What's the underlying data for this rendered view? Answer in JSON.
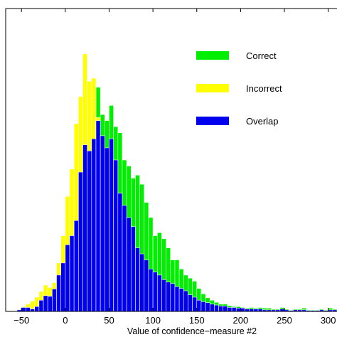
{
  "chart_data": {
    "type": "bar",
    "xlabel": "Value of confidence−measure #2",
    "ylabel": "",
    "title": "",
    "x_ticks": [
      -50,
      0,
      50,
      100,
      150,
      200,
      250,
      300
    ],
    "x_tick_labels": [
      "−50",
      "0",
      "50",
      "100",
      "150",
      "200",
      "250",
      "300"
    ],
    "xlim": [
      -68,
      310
    ],
    "ylim": [
      0,
      100
    ],
    "bin_width": 5,
    "bin_starts": [
      -60,
      -55,
      -50,
      -45,
      -40,
      -35,
      -30,
      -25,
      -20,
      -15,
      -10,
      -5,
      0,
      5,
      10,
      15,
      20,
      25,
      30,
      35,
      40,
      45,
      50,
      55,
      60,
      65,
      70,
      75,
      80,
      85,
      90,
      95,
      100,
      105,
      110,
      115,
      120,
      125,
      130,
      135,
      140,
      145,
      150,
      155,
      160,
      165,
      170,
      175,
      180,
      185,
      190,
      195,
      200,
      205,
      210,
      215,
      220,
      225,
      230,
      235,
      240,
      245,
      250,
      255,
      260,
      265,
      270,
      275,
      280,
      285,
      290,
      295,
      300,
      305
    ],
    "series": [
      {
        "name": "Correct",
        "color": "#00ee00",
        "values": [
          0,
          0.5,
          1.3,
          1.3,
          0.8,
          1.6,
          5.2,
          5.5,
          5.5,
          7.4,
          12,
          18,
          30,
          39,
          42,
          43,
          55,
          59,
          66,
          74,
          65,
          63,
          68,
          61,
          59,
          50,
          48,
          44,
          45,
          42,
          36,
          31,
          25,
          26,
          24,
          21,
          17,
          17,
          14,
          12,
          11,
          10,
          7.6,
          5.8,
          4.5,
          3.7,
          3,
          2.4,
          2.4,
          1.9,
          1.6,
          1.6,
          1.3,
          1.1,
          1.3,
          1.1,
          1.3,
          1.1,
          1.1,
          0.8,
          0.8,
          1.3,
          0.8,
          0.5,
          0.8,
          0.8,
          1.1,
          0.5,
          0.5,
          0.5,
          0.8,
          0.5,
          1.1,
          0.8
        ]
      },
      {
        "name": "Incorrect",
        "color": "#ffff00",
        "values": [
          0,
          0.5,
          1.6,
          2.4,
          3.4,
          4.7,
          6.6,
          8.7,
          7.9,
          9.5,
          16,
          25,
          38,
          47,
          62,
          71,
          85,
          76,
          77,
          64,
          57,
          47,
          32,
          22,
          16,
          9.2,
          6,
          4.2,
          3.4,
          2.9,
          2.1,
          1.8,
          1.6,
          1.3,
          1.1,
          0.8,
          0.8,
          0.5,
          0.5,
          0.5,
          0.3,
          0.3,
          0.3,
          0.3,
          0.3,
          0.3,
          0.3,
          0,
          0,
          0,
          0,
          0,
          0,
          0,
          0,
          0,
          0,
          0,
          0,
          0,
          0,
          0,
          0,
          0,
          0,
          0,
          0,
          0,
          0,
          0,
          0,
          0,
          0,
          0
        ]
      },
      {
        "name": "Overlap",
        "color": "#0000ee",
        "values": [
          0,
          0.5,
          1.3,
          1.3,
          0.8,
          1.6,
          3.7,
          5.2,
          5,
          7.4,
          12,
          16,
          22,
          25,
          30,
          46,
          55,
          53,
          57,
          63,
          58,
          54,
          57,
          50,
          39,
          35,
          31,
          28,
          21,
          19,
          17,
          14,
          13,
          12,
          10.5,
          9.7,
          9.2,
          8.2,
          7.6,
          6.8,
          5.5,
          4.7,
          3.7,
          3.2,
          2.9,
          2.4,
          2.1,
          1.8,
          1.8,
          1.3,
          1.3,
          1.1,
          1.1,
          0.8,
          0.8,
          0.8,
          0.8,
          0.5,
          0.5,
          0.5,
          0.5,
          0.8,
          0.5,
          0.3,
          0.5,
          0.5,
          0.5,
          0.3,
          0.3,
          0.3,
          0.5,
          0.3,
          0.5,
          0.5
        ]
      }
    ],
    "legend": {
      "placement": "top-right",
      "entries": [
        {
          "label": "Correct",
          "color": "#00ee00"
        },
        {
          "label": "Incorrect",
          "color": "#ffff00"
        },
        {
          "label": "Overlap",
          "color": "#0000ee"
        }
      ]
    },
    "grid": false
  }
}
